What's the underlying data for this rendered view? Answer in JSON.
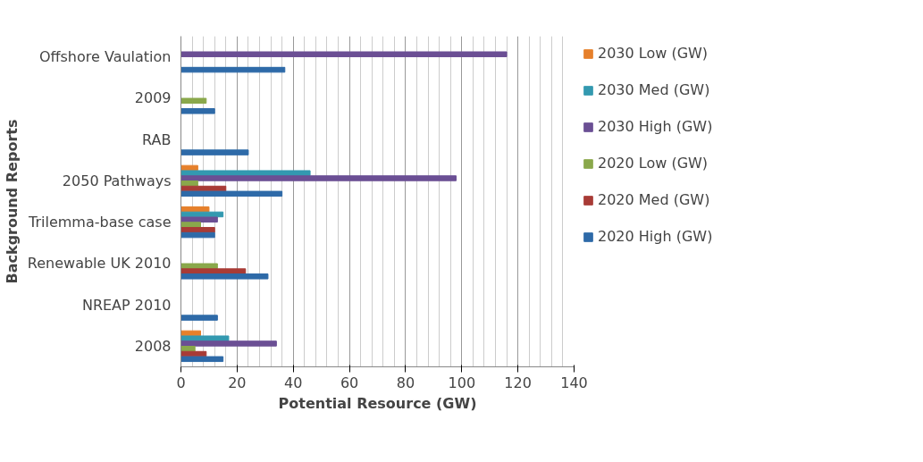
{
  "chart_data": {
    "type": "bar",
    "orientation": "horizontal",
    "xlabel": "Potential Resource (GW)",
    "ylabel": "Background Reports",
    "categories": [
      "Offshore Vaulation",
      "2009",
      "RAB",
      "2050 Pathways",
      "Trilemma-base case",
      "Renewable UK 2010",
      "NREAP 2010",
      "2008"
    ],
    "series": [
      {
        "name": "2030 Low (GW)",
        "color": "#e6802b",
        "values": [
          null,
          null,
          null,
          6,
          10,
          null,
          null,
          7
        ]
      },
      {
        "name": "2030 Med (GW)",
        "color": "#3399b0",
        "values": [
          null,
          null,
          null,
          46,
          15,
          null,
          null,
          17
        ]
      },
      {
        "name": "2030 High (GW)",
        "color": "#6b4f94",
        "values": [
          116,
          null,
          null,
          98,
          13,
          null,
          null,
          34
        ]
      },
      {
        "name": "2020 Low (GW)",
        "color": "#8aa84b",
        "values": [
          null,
          9,
          null,
          6,
          7,
          13,
          null,
          5
        ]
      },
      {
        "name": "2020 Med (GW)",
        "color": "#a83b36",
        "values": [
          null,
          null,
          null,
          16,
          12,
          23,
          null,
          9
        ]
      },
      {
        "name": "2020 High (GW)",
        "color": "#2e6aa8",
        "values": [
          37,
          12,
          24,
          36,
          12,
          31,
          13,
          15
        ]
      }
    ],
    "xlim": [
      0,
      140
    ],
    "xticks": [
      0,
      20,
      40,
      60,
      80,
      100,
      120,
      140
    ],
    "grid": "x",
    "legend": "right"
  }
}
